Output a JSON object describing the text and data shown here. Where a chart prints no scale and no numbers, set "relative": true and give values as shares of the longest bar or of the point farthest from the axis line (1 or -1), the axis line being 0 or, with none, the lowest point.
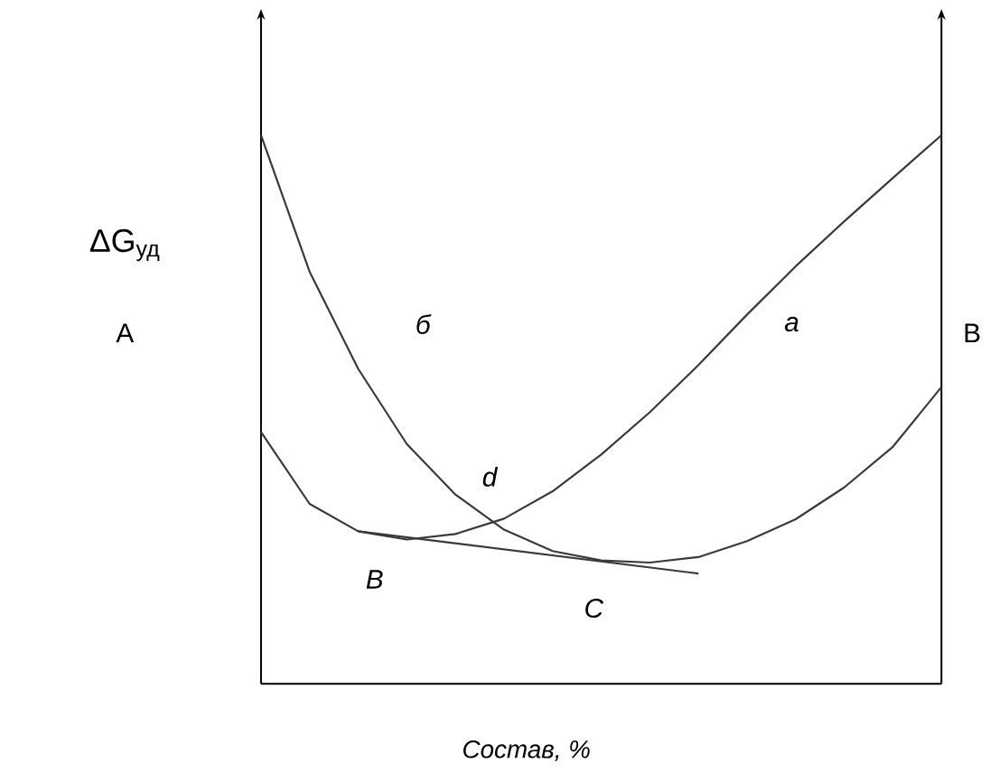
{
  "chart_data": {
    "type": "line",
    "relative": true,
    "xlabel": "Состав, %",
    "ylabel": "ΔG$_{уд}$",
    "marker": "none",
    "categories": [
      null,
      null,
      null,
      null,
      null,
      null,
      null,
      null,
      null,
      null,
      null,
      null,
      null,
      null,
      null
    ],
    "series": [
      {
        "color": "#3a3a3a",
        "values": [
          0.459,
          0.328,
          0.278,
          0.263,
          0.273,
          0.301,
          0.351,
          0.418,
          0.495,
          0.581,
          0.673,
          0.761,
          0.843,
          0.922,
          1.0
        ]
      },
      {
        "color": "#3a3a3a",
        "values": [
          1.0,
          0.751,
          0.574,
          0.437,
          0.345,
          0.281,
          0.242,
          0.225,
          0.221,
          0.231,
          0.26,
          0.3,
          0.358,
          0.432,
          0.541
        ]
      },
      {
        "color": "#3a3a3a",
        "values": [
          null,
          null,
          0.278,
          null,
          null,
          null,
          null,
          null,
          null,
          0.201,
          null,
          null,
          null,
          null,
          null
        ]
      }
    ],
    "annotations": [
      "а",
      "б",
      "d",
      "В",
      "С",
      "A",
      "B"
    ]
  }
}
